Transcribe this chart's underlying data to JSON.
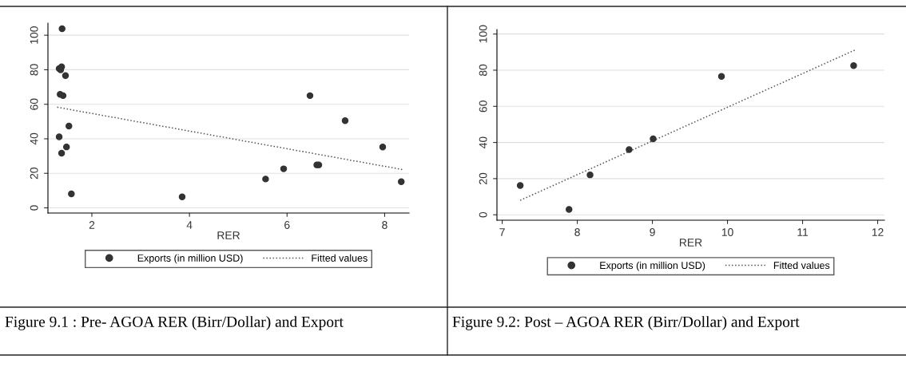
{
  "chart_data": [
    {
      "type": "scatter",
      "xlabel": "RER",
      "xlim": [
        1.1,
        8.5
      ],
      "ylim": [
        -3,
        107
      ],
      "xticks": [
        2,
        4,
        6,
        8
      ],
      "yticks": [
        0,
        20,
        40,
        60,
        80,
        100
      ],
      "grid": "y",
      "legend": "bottom",
      "annotations": [
        "Figure 9.1 : Pre- AGOA RER (Birr/Dollar) and Export"
      ],
      "series": [
        {
          "name": "Exports (in million USD)",
          "type": "scatter",
          "marker": "circle",
          "color": "#333333",
          "x": [
            1.39,
            1.33,
            1.38,
            1.36,
            1.46,
            1.35,
            1.41,
            1.53,
            1.33,
            1.48,
            1.38,
            1.58,
            3.85,
            5.56,
            5.93,
            6.47,
            7.19,
            7.96,
            6.61,
            6.65,
            8.34
          ],
          "values": [
            103.8,
            80.7,
            81.7,
            80,
            76.6,
            65.7,
            65,
            47.4,
            41.1,
            35.3,
            31.7,
            8.1,
            6.4,
            16.7,
            22.6,
            65,
            50.5,
            35.2,
            24.9,
            24.9,
            15.1
          ]
        },
        {
          "name": "Fitted values",
          "type": "line",
          "line_style": "dotted",
          "color": "#555555",
          "x": [
            1.29,
            8.36
          ],
          "values": [
            58.3,
            22.2
          ]
        }
      ]
    },
    {
      "type": "scatter",
      "xlabel": "RER",
      "xlim": [
        6.93,
        12.09
      ],
      "ylim": [
        -3,
        102.5
      ],
      "xticks": [
        7,
        8,
        9,
        10,
        11,
        12
      ],
      "yticks": [
        0,
        20,
        40,
        60,
        80,
        100
      ],
      "grid": "y",
      "legend": "bottom",
      "annotations": [
        "Figure 9.2: Post – AGOA RER (Birr/Dollar) and Export"
      ],
      "series": [
        {
          "name": "Exports (in million USD)",
          "type": "scatter",
          "marker": "circle",
          "color": "#333333",
          "x": [
            7.24,
            7.89,
            8.17,
            8.69,
            9.01,
            9.92,
            11.68
          ],
          "values": [
            16.2,
            3,
            22.1,
            36.1,
            42,
            76.6,
            82.5
          ]
        },
        {
          "name": "Fitted values",
          "type": "line",
          "line_style": "dotted",
          "color": "#555555",
          "x": [
            7.24,
            11.7
          ],
          "values": [
            8,
            91.2
          ]
        }
      ]
    }
  ]
}
